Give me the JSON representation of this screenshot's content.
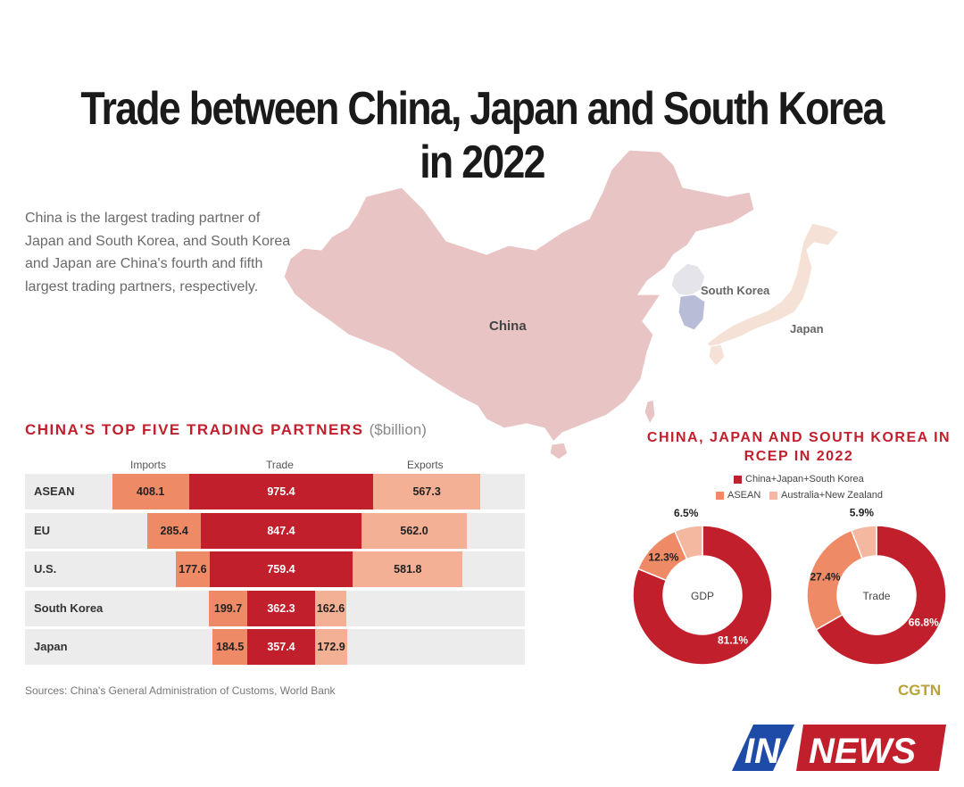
{
  "title": "Trade between China, Japan and South Korea in 2022",
  "intro": "China is the largest trading partner of Japan and South Korea, and South Korea and Japan are China's fourth and fifth largest trading partners, respectively.",
  "map": {
    "labels": {
      "china": "China",
      "south_korea": "South Korea",
      "japan": "Japan"
    },
    "colors": {
      "china": "#e8c4c4",
      "south_korea": "#b8bcd6",
      "japan": "#f5e1d6",
      "north_korea": "#e4e4ea"
    }
  },
  "partners_section": {
    "title": "CHINA'S TOP FIVE TRADING PARTNERS",
    "unit": "($billion)"
  },
  "chart_data": [
    {
      "type": "bar",
      "title": "CHINA'S TOP FIVE TRADING PARTNERS",
      "unit": "($billion)",
      "columns": [
        "Imports",
        "Trade",
        "Exports"
      ],
      "categories": [
        "ASEAN",
        "EU",
        "U.S.",
        "South Korea",
        "Japan"
      ],
      "series": [
        {
          "name": "Imports",
          "values": [
            408.1,
            285.4,
            177.6,
            199.7,
            184.5
          ],
          "color": "#ef8a66",
          "labels": [
            "408.1",
            "285.4",
            "177.6",
            "199.7",
            "184.5"
          ]
        },
        {
          "name": "Trade",
          "values": [
            975.4,
            847.4,
            759.4,
            362.3,
            357.4
          ],
          "color": "#c21f2c",
          "labels": [
            "975.4",
            "847.4",
            "759.4",
            "362.3",
            "357.4"
          ]
        },
        {
          "name": "Exports",
          "values": [
            567.3,
            562.0,
            581.8,
            162.6,
            172.9
          ],
          "color": "#f4b094",
          "labels": [
            "567.3",
            "562.0",
            "581.8",
            "162.6",
            "172.9"
          ]
        }
      ]
    },
    {
      "type": "pie",
      "title": "CHINA, JAPAN AND SOUTH KOREA IN RCEP IN 2022",
      "legend": [
        "China+Japan+South Korea",
        "ASEAN",
        "Australia+New Zealand"
      ],
      "colors": [
        "#c21f2c",
        "#ef8a66",
        "#f4b7a0"
      ],
      "charts": [
        {
          "center_label": "GDP",
          "values": [
            81.1,
            12.3,
            6.5
          ],
          "labels": [
            "81.1%",
            "12.3%",
            "6.5%"
          ]
        },
        {
          "center_label": "Trade",
          "values": [
            66.8,
            27.4,
            5.9
          ],
          "labels": [
            "66.8%",
            "27.4%",
            "5.9%"
          ]
        }
      ]
    }
  ],
  "source": "Sources: China's General Administration of Customs, World Bank",
  "cgtn": "CGTN",
  "logo": {
    "prefix": "IN",
    "text": "NEWS"
  }
}
